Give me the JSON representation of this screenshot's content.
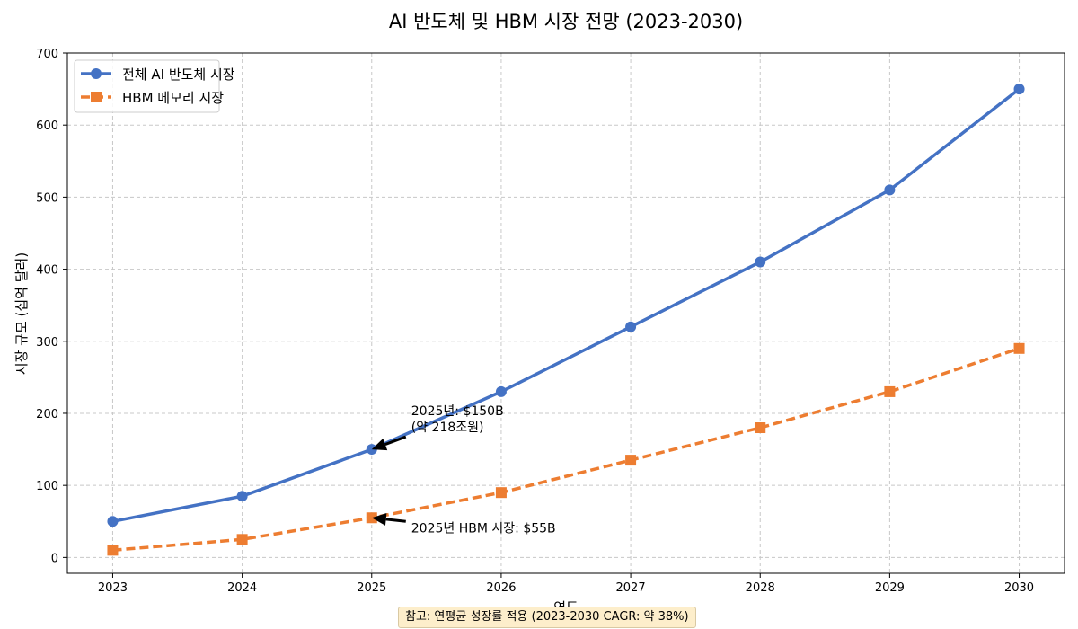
{
  "chart_data": {
    "type": "line",
    "title": "AI 반도체 및 HBM 시장 전망 (2023-2030)",
    "xlabel": "연도",
    "ylabel": "시장 규모 (십억 달러)",
    "x": [
      2023,
      2024,
      2025,
      2026,
      2027,
      2028,
      2029,
      2030
    ],
    "xlim": [
      2022.65,
      2030.35
    ],
    "ylim": [
      -22,
      700
    ],
    "yticks": [
      0,
      100,
      200,
      300,
      400,
      500,
      600,
      700
    ],
    "grid": true,
    "legend_position": "top-left",
    "series": [
      {
        "name": "전체 AI 반도체 시장",
        "values": [
          50,
          85,
          150,
          230,
          320,
          410,
          510,
          650
        ],
        "color": "#4472c4",
        "marker": "circle",
        "line_style": "solid"
      },
      {
        "name": "HBM 메모리 시장",
        "values": [
          10,
          25,
          55,
          90,
          135,
          180,
          230,
          290
        ],
        "color": "#ed7d31",
        "marker": "square",
        "line_style": "dashed"
      }
    ],
    "annotations": [
      {
        "text_lines": [
          "2025년: $150B",
          "(약 218조원)"
        ],
        "x": 2025,
        "y": 150
      },
      {
        "text_lines": [
          "2025년 HBM 시장: $55B"
        ],
        "x": 2025,
        "y": 55
      }
    ],
    "footnote": "참고: 연평균 성장률 적용 (2023-2030 CAGR: 약 38%)"
  }
}
